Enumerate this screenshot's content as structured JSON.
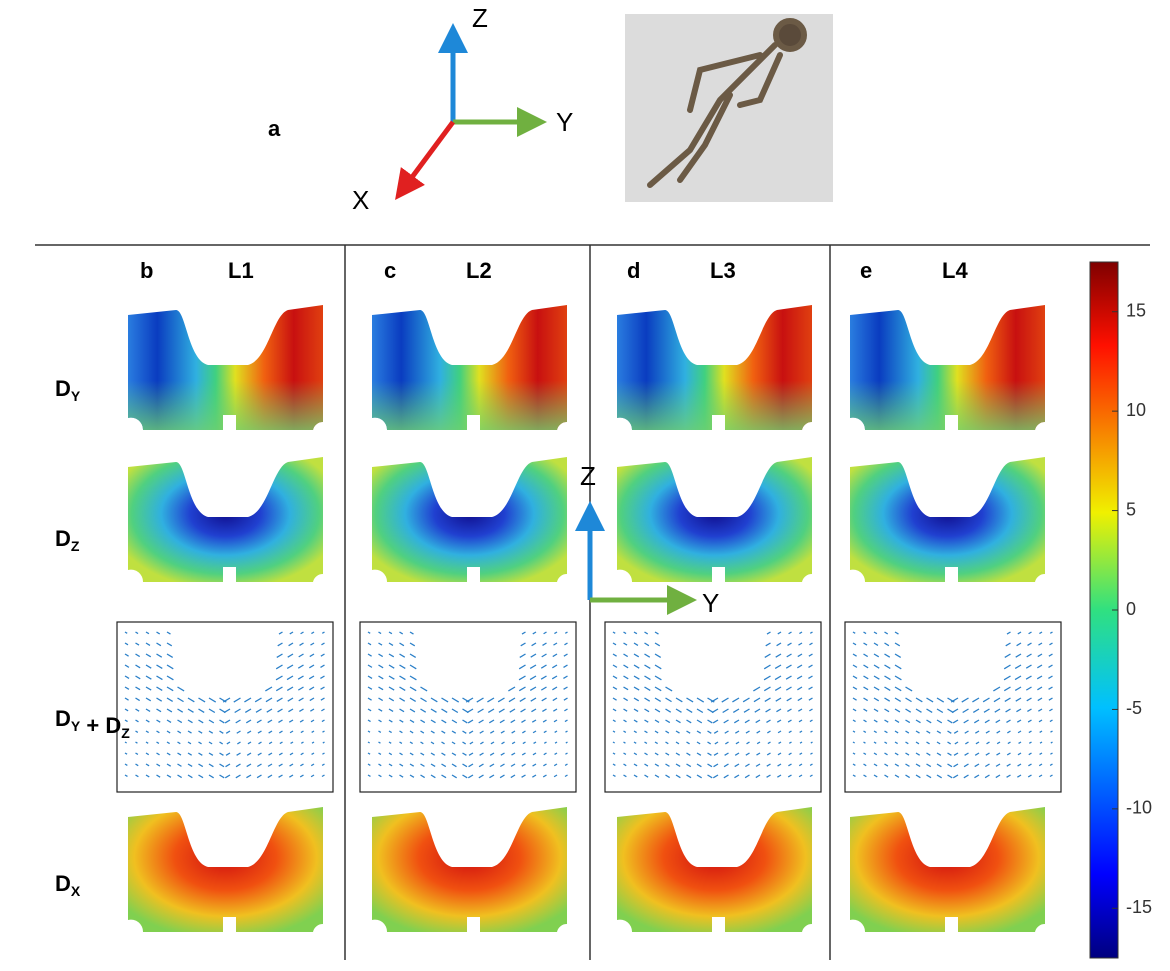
{
  "panel_a": {
    "label": "a",
    "axes": {
      "z": "Z",
      "y": "Y",
      "x": "X"
    }
  },
  "columns": [
    {
      "letter": "b",
      "title": "L1"
    },
    {
      "letter": "c",
      "title": "L2"
    },
    {
      "letter": "d",
      "title": "L3"
    },
    {
      "letter": "e",
      "title": "L4"
    }
  ],
  "rows": [
    [
      {
        "t": "D",
        "s": "Y"
      }
    ],
    [
      {
        "t": "D",
        "s": "Z"
      }
    ],
    [
      {
        "t": "D",
        "s": "Y"
      },
      {
        "t": " + "
      },
      {
        "t": "D",
        "s": "Z"
      }
    ],
    [
      {
        "t": "D",
        "s": "X"
      }
    ]
  ],
  "inset_axes": {
    "z": "Z",
    "y": "Y"
  },
  "colorbar": {
    "lim": [
      -17.5,
      17.5
    ],
    "ticks": [
      -15,
      -10,
      -5,
      0,
      5,
      10,
      15
    ]
  }
}
